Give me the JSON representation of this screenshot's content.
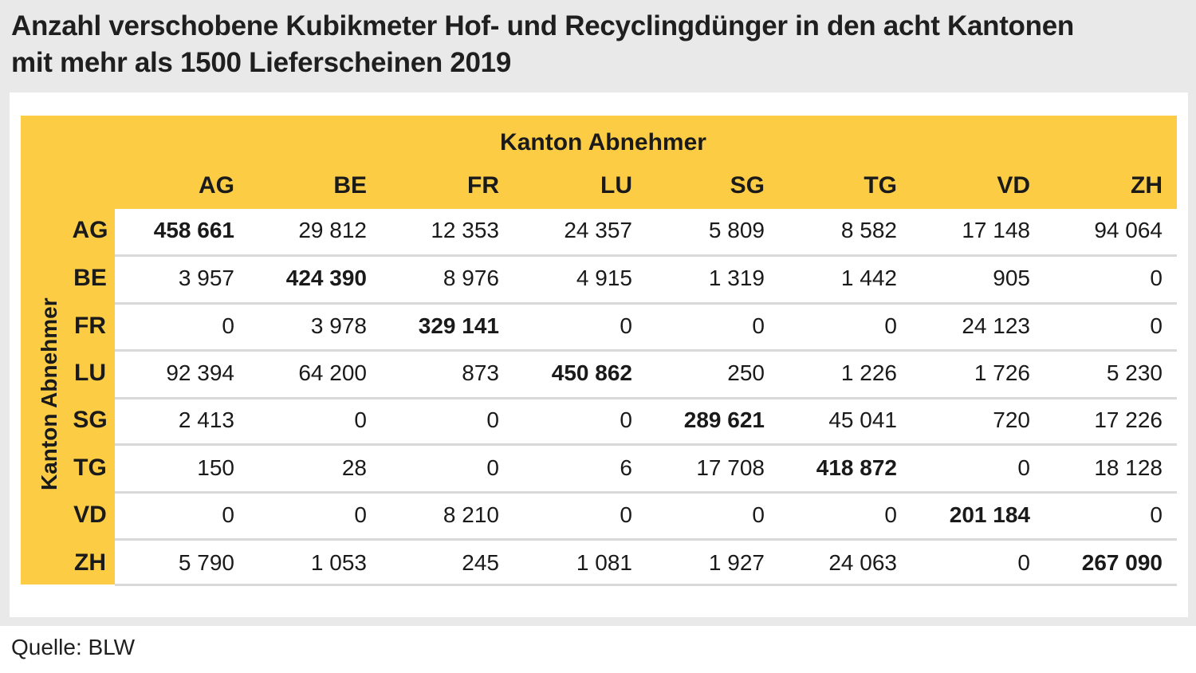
{
  "title": {
    "line1": "Anzahl verschobene Kubikmeter Hof- und Recyclingdünger in den acht Kantonen",
    "line2": "mit mehr als 1500 Lieferscheinen 2019"
  },
  "source": "Quelle: BLW",
  "chart_data": {
    "type": "table",
    "column_group_label": "Kanton Abnehmer",
    "row_group_label": "Kanton Abnehmer",
    "columns": [
      "AG",
      "BE",
      "FR",
      "LU",
      "SG",
      "TG",
      "VD",
      "ZH"
    ],
    "rows": [
      {
        "label": "AG",
        "values": [
          "458 661",
          "29 812",
          "12 353",
          "24 357",
          "5 809",
          "8 582",
          "17 148",
          "94 064"
        ]
      },
      {
        "label": "BE",
        "values": [
          "3 957",
          "424 390",
          "8 976",
          "4 915",
          "1 319",
          "1 442",
          "905",
          "0"
        ]
      },
      {
        "label": "FR",
        "values": [
          "0",
          "3 978",
          "329 141",
          "0",
          "0",
          "0",
          "24 123",
          "0"
        ]
      },
      {
        "label": "LU",
        "values": [
          "92 394",
          "64 200",
          "873",
          "450 862",
          "250",
          "1 226",
          "1 726",
          "5 230"
        ]
      },
      {
        "label": "SG",
        "values": [
          "2 413",
          "0",
          "0",
          "0",
          "289 621",
          "45 041",
          "720",
          "17 226"
        ]
      },
      {
        "label": "TG",
        "values": [
          "150",
          "28",
          "0",
          "6",
          "17 708",
          "418 872",
          "0",
          "18 128"
        ]
      },
      {
        "label": "VD",
        "values": [
          "0",
          "0",
          "8 210",
          "0",
          "0",
          "0",
          "201 184",
          "0"
        ]
      },
      {
        "label": "ZH",
        "values": [
          "5 790",
          "1 053",
          "245",
          "1 081",
          "1 927",
          "24 063",
          "0",
          "267 090"
        ]
      }
    ]
  }
}
